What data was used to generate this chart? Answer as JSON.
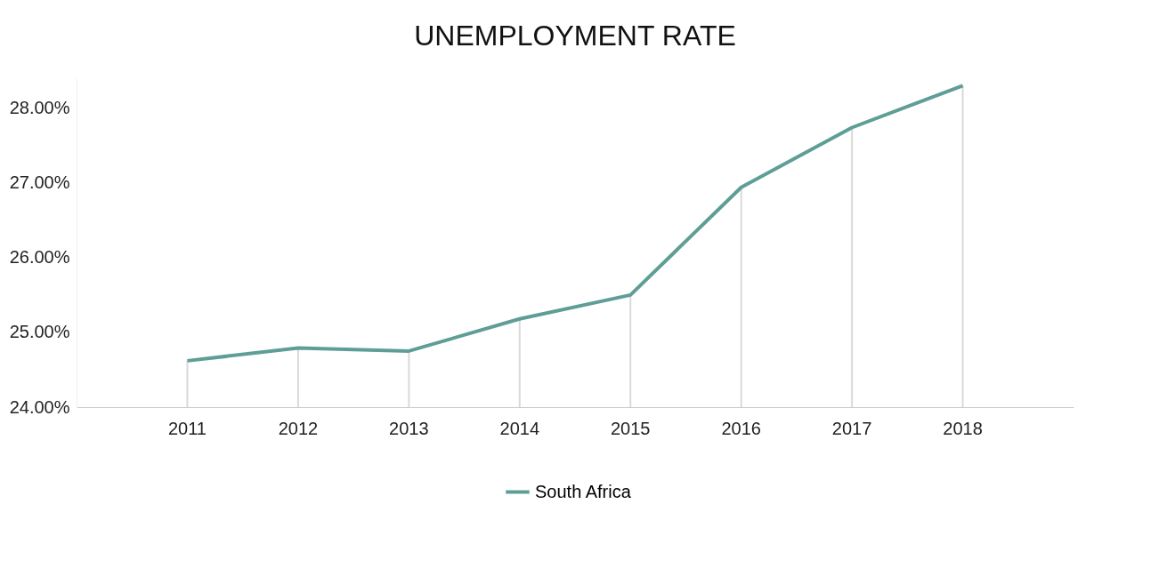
{
  "chart_data": {
    "type": "line",
    "title": "UNEMPLOYMENT  RATE",
    "categories": [
      "2011",
      "2012",
      "2013",
      "2014",
      "2015",
      "2016",
      "2017",
      "2018"
    ],
    "series": [
      {
        "type": "bar",
        "color": "#d9d9d9",
        "values": [
          24.62,
          24.79,
          24.75,
          25.18,
          25.5,
          26.94,
          27.74,
          28.3
        ]
      },
      {
        "name": "South Africa",
        "color": "#5e9e96",
        "values": [
          24.62,
          24.79,
          24.75,
          25.18,
          25.5,
          26.94,
          27.74,
          28.3
        ]
      }
    ],
    "ylim": [
      24,
      28.4
    ],
    "yticks": [
      {
        "value": 24,
        "label": "24.00%"
      },
      {
        "value": 25,
        "label": "25.00%"
      },
      {
        "value": 26,
        "label": "26.00%"
      },
      {
        "value": 27,
        "label": "27.00%"
      },
      {
        "value": 28,
        "label": "28.00%"
      }
    ],
    "legend": "bottom",
    "marker": "none",
    "line_style": "solid"
  }
}
